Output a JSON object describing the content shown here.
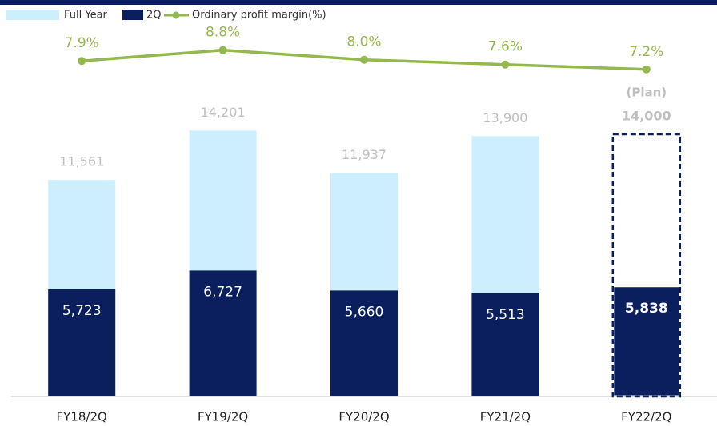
{
  "chart_data": {
    "type": "bar",
    "categories": [
      "FY18/2Q",
      "FY19/2Q",
      "FY20/2Q",
      "FY21/2Q",
      "FY22/2Q"
    ],
    "series": [
      {
        "name": "Full Year",
        "color": "#cdeefc",
        "values": [
          11561,
          14201,
          11937,
          13900,
          14000
        ],
        "value_labels": [
          "11,561",
          "14,201",
          "11,937",
          "13,900",
          "14,000"
        ]
      },
      {
        "name": "2Q",
        "color": "#0b1f5e",
        "values": [
          5723,
          6727,
          5660,
          5513,
          5838
        ],
        "value_labels": [
          "5,723",
          "6,727",
          "5,660",
          "5,513",
          "5,838"
        ]
      },
      {
        "name": "Ordinary profit margin(%)",
        "type": "line",
        "axis": "y2",
        "color": "#94b84e",
        "values": [
          7.9,
          8.8,
          8.0,
          7.6,
          7.2
        ],
        "value_labels": [
          "7.9%",
          "8.8%",
          "8.0%",
          "7.6%",
          "7.2%"
        ]
      }
    ],
    "annotations": [
      "(Plan)"
    ],
    "ylim": [
      0,
      21000
    ],
    "y2lim": [
      -20,
      12.7
    ]
  }
}
